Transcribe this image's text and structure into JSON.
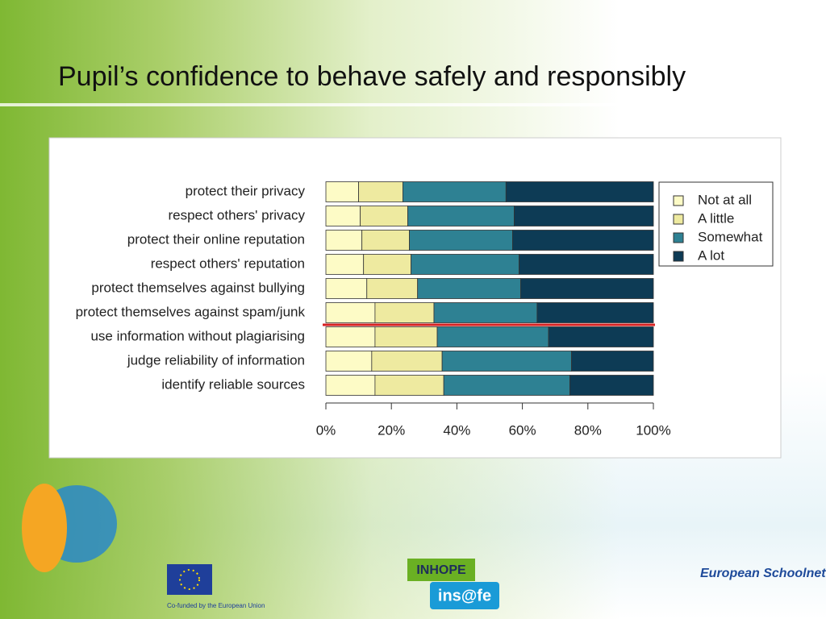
{
  "chart_data": {
    "type": "stacked-barh",
    "title": "Pupil’s confidence to behave safely and responsibly",
    "categories": [
      "protect their privacy",
      "respect others' privacy",
      "protect their online reputation",
      "respect others' reputation",
      "protect themselves against bullying",
      "protect themselves against spam/junk",
      "use information without plagiarising",
      "judge reliability of information",
      "identify reliable sources"
    ],
    "series": [
      {
        "name": "Not at all",
        "color": "#fdfbc6",
        "values": [
          10,
          10.5,
          11,
          11.5,
          12.5,
          15,
          15,
          14,
          15
        ]
      },
      {
        "name": "A little",
        "color": "#eeeaa0",
        "values": [
          13.5,
          14.5,
          14.5,
          14.5,
          15.5,
          18,
          19,
          21.5,
          21
        ]
      },
      {
        "name": "Somewhat",
        "color": "#2e8193",
        "values": [
          31.5,
          32.5,
          31.5,
          33,
          31.5,
          31.5,
          34,
          39.5,
          38.5
        ]
      },
      {
        "name": "A lot",
        "color": "#0d3b55",
        "values": [
          45,
          42.5,
          43,
          41,
          40.5,
          35.5,
          32,
          25,
          25.5
        ]
      }
    ],
    "xlim": [
      0,
      100
    ],
    "xticks": [
      {
        "value": 0,
        "label": "0%"
      },
      {
        "value": 20,
        "label": "20%"
      },
      {
        "value": 40,
        "label": "40%"
      },
      {
        "value": 60,
        "label": "60%"
      },
      {
        "value": 80,
        "label": "80%"
      },
      {
        "value": 100,
        "label": "100%"
      }
    ],
    "legend": "right"
  },
  "footer": {
    "eu": "Co-funded by the European Union",
    "inhope": "INHOPE",
    "insafe": "ins@fe",
    "schoolnet": "European Schoolnet"
  }
}
